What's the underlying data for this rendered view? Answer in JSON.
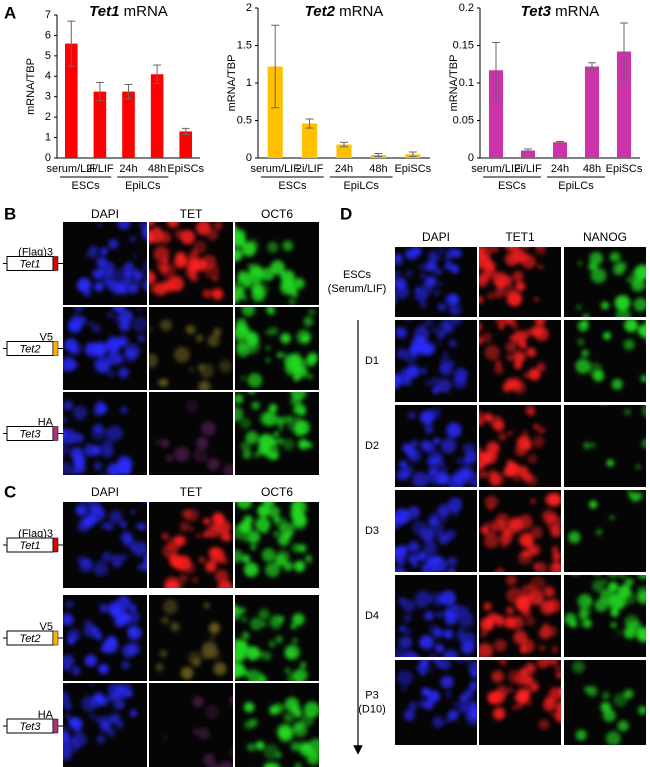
{
  "panel_labels": [
    "A",
    "B",
    "C",
    "D"
  ],
  "chart_data": [
    {
      "type": "bar",
      "title": "Tet1 mRNA",
      "y_label": "mRNA/TBP",
      "categories": [
        "serum/LIF",
        "2i/LIF",
        "24h",
        "48h",
        "EpiSCs"
      ],
      "groups": [
        {
          "label": "ESCs",
          "count": 2
        },
        {
          "label": "EpiLCs",
          "count": 2
        }
      ],
      "values": [
        5.6,
        3.25,
        3.25,
        4.1,
        1.3
      ],
      "errors": [
        1.1,
        0.45,
        0.35,
        0.45,
        0.15
      ],
      "color": "#ff0000",
      "ylim": [
        0,
        7
      ],
      "yticks": [
        0,
        1,
        2,
        3,
        4,
        5,
        6,
        7
      ]
    },
    {
      "type": "bar",
      "title": "Tet2 mRNA",
      "y_label": "mRNA/TBP",
      "categories": [
        "serum/LIF",
        "2i/LIF",
        "24h",
        "48h",
        "EpiSCs"
      ],
      "groups": [
        {
          "label": "ESCs",
          "count": 2
        },
        {
          "label": "EpiLCs",
          "count": 2
        }
      ],
      "values": [
        1.22,
        0.46,
        0.18,
        0.04,
        0.05
      ],
      "errors": [
        0.55,
        0.06,
        0.03,
        0.02,
        0.03
      ],
      "color": "#ffc000",
      "ylim": [
        0,
        2
      ],
      "yticks": [
        0,
        0.5,
        1,
        1.5,
        2
      ]
    },
    {
      "type": "bar",
      "title": "Tet3 mRNA",
      "y_label": "mRNA/TBP",
      "categories": [
        "serum/LIF",
        "2i/LIF",
        "24h",
        "48h",
        "EpiSCs"
      ],
      "groups": [
        {
          "label": "ESCs",
          "count": 2
        },
        {
          "label": "EpiLCs",
          "count": 2
        }
      ],
      "values": [
        0.117,
        0.01,
        0.021,
        0.122,
        0.142
      ],
      "errors": [
        0.037,
        0.002,
        0.001,
        0.005,
        0.038
      ],
      "color": "#cc33aa",
      "ylim": [
        0,
        0.2
      ],
      "yticks": [
        0,
        0.05,
        0.1,
        0.15,
        0.2
      ]
    }
  ],
  "panel_b": {
    "columns": [
      "DAPI",
      "TET",
      "OCT6"
    ],
    "rows": [
      {
        "tag": "(Flag)3",
        "gene": "Tet1"
      },
      {
        "tag": "V5",
        "gene": "Tet2"
      },
      {
        "tag": "HA",
        "gene": "Tet3"
      }
    ]
  },
  "panel_c": {
    "columns": [
      "DAPI",
      "TET",
      "OCT6"
    ],
    "rows": [
      {
        "tag": "(Flag)3",
        "gene": "Tet1"
      },
      {
        "tag": "V5",
        "gene": "Tet2"
      },
      {
        "tag": "HA",
        "gene": "Tet3"
      }
    ]
  },
  "panel_d": {
    "columns": [
      "DAPI",
      "TET1",
      "NANOG"
    ],
    "rows": [
      {
        "label": "ESCs",
        "sublabel": "(Serum/LIF)"
      },
      {
        "label": "D1"
      },
      {
        "label": "D2"
      },
      {
        "label": "D3"
      },
      {
        "label": "D4"
      },
      {
        "label": "P3",
        "sublabel": "(D10)"
      }
    ]
  }
}
